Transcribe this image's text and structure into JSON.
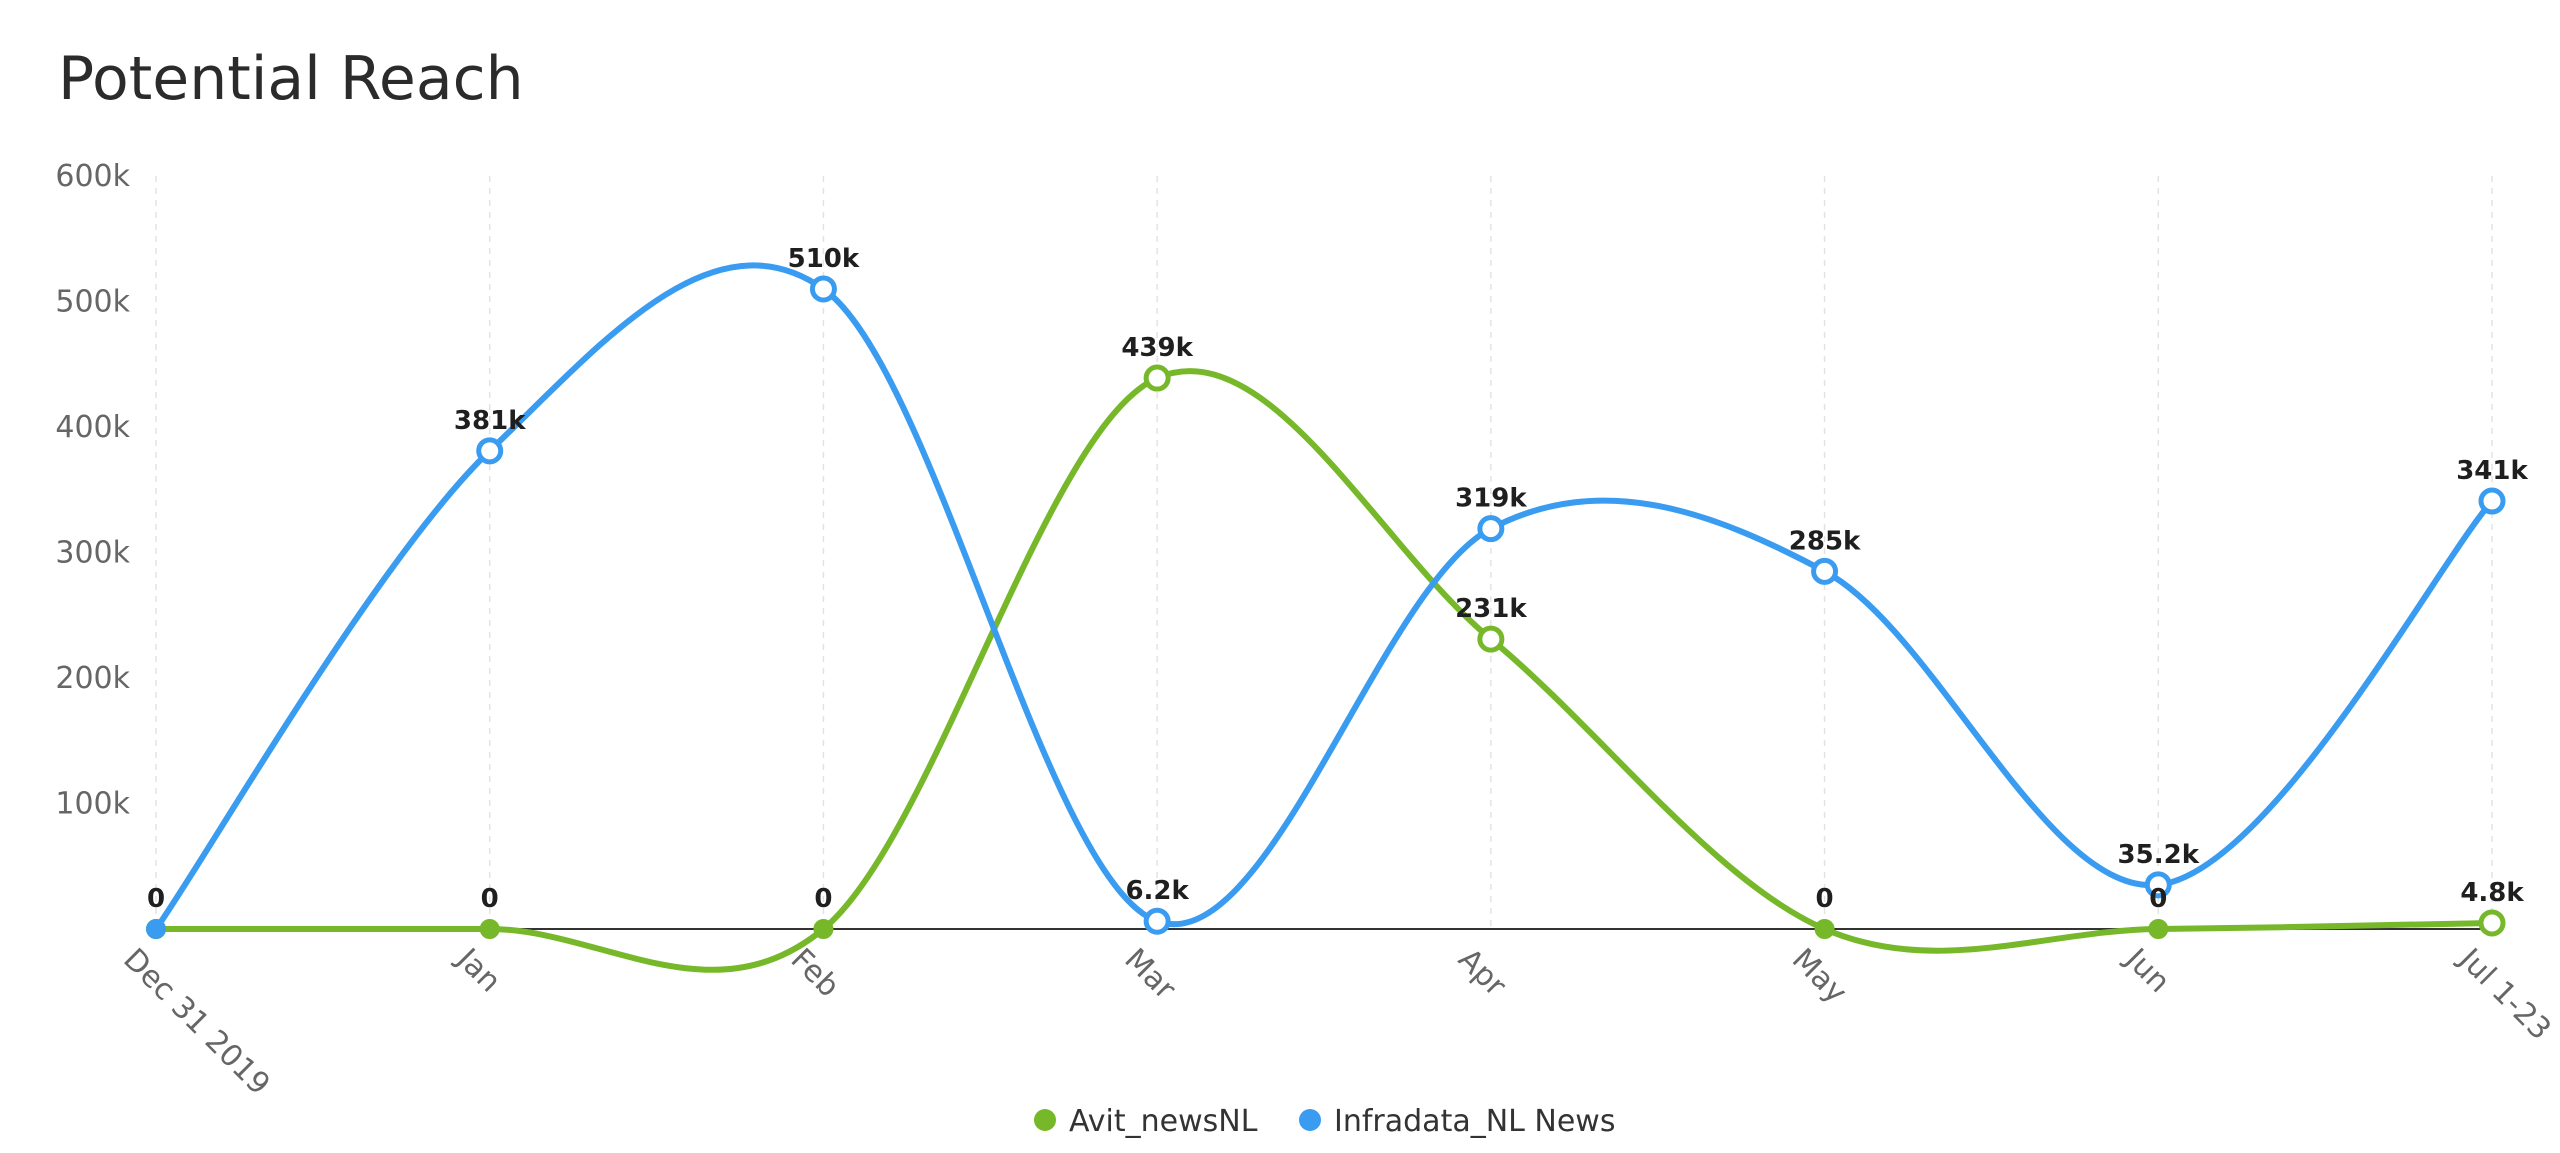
{
  "colors": {
    "background": "#ffffff",
    "axis_line": "#333333",
    "grid_line": "#e3e3e3",
    "series_green": "#76b82a",
    "series_blue": "#3a9cf0"
  },
  "chart_data": {
    "type": "line",
    "title": "Potential Reach",
    "xlabel": "",
    "ylabel": "",
    "categories": [
      "Dec 31 2019",
      "Jan",
      "Feb",
      "Mar",
      "Apr",
      "May",
      "Jun",
      "Jul 1-23"
    ],
    "ylim": [
      0,
      600000
    ],
    "yticks": [
      100000,
      200000,
      300000,
      400000,
      500000,
      600000
    ],
    "ytick_labels": [
      "100k",
      "200k",
      "300k",
      "400k",
      "500k",
      "600k"
    ],
    "grid": "vertical dashed",
    "legend_position": "bottom-center",
    "series": [
      {
        "name": "Avit_newsNL",
        "color": "#76b82a",
        "values": [
          0,
          0,
          0,
          439000,
          231000,
          0,
          0,
          4800
        ],
        "labels": [
          "0",
          "0",
          "0",
          "439k",
          "231k",
          "0",
          "0",
          "4.8k"
        ]
      },
      {
        "name": "Infradata_NL News",
        "color": "#3a9cf0",
        "values": [
          0,
          381000,
          510000,
          6200,
          319000,
          285000,
          35200,
          341000
        ],
        "labels": [
          "",
          "381k",
          "510k",
          "6.2k",
          "319k",
          "285k",
          "35.2k",
          "341k"
        ]
      }
    ]
  }
}
